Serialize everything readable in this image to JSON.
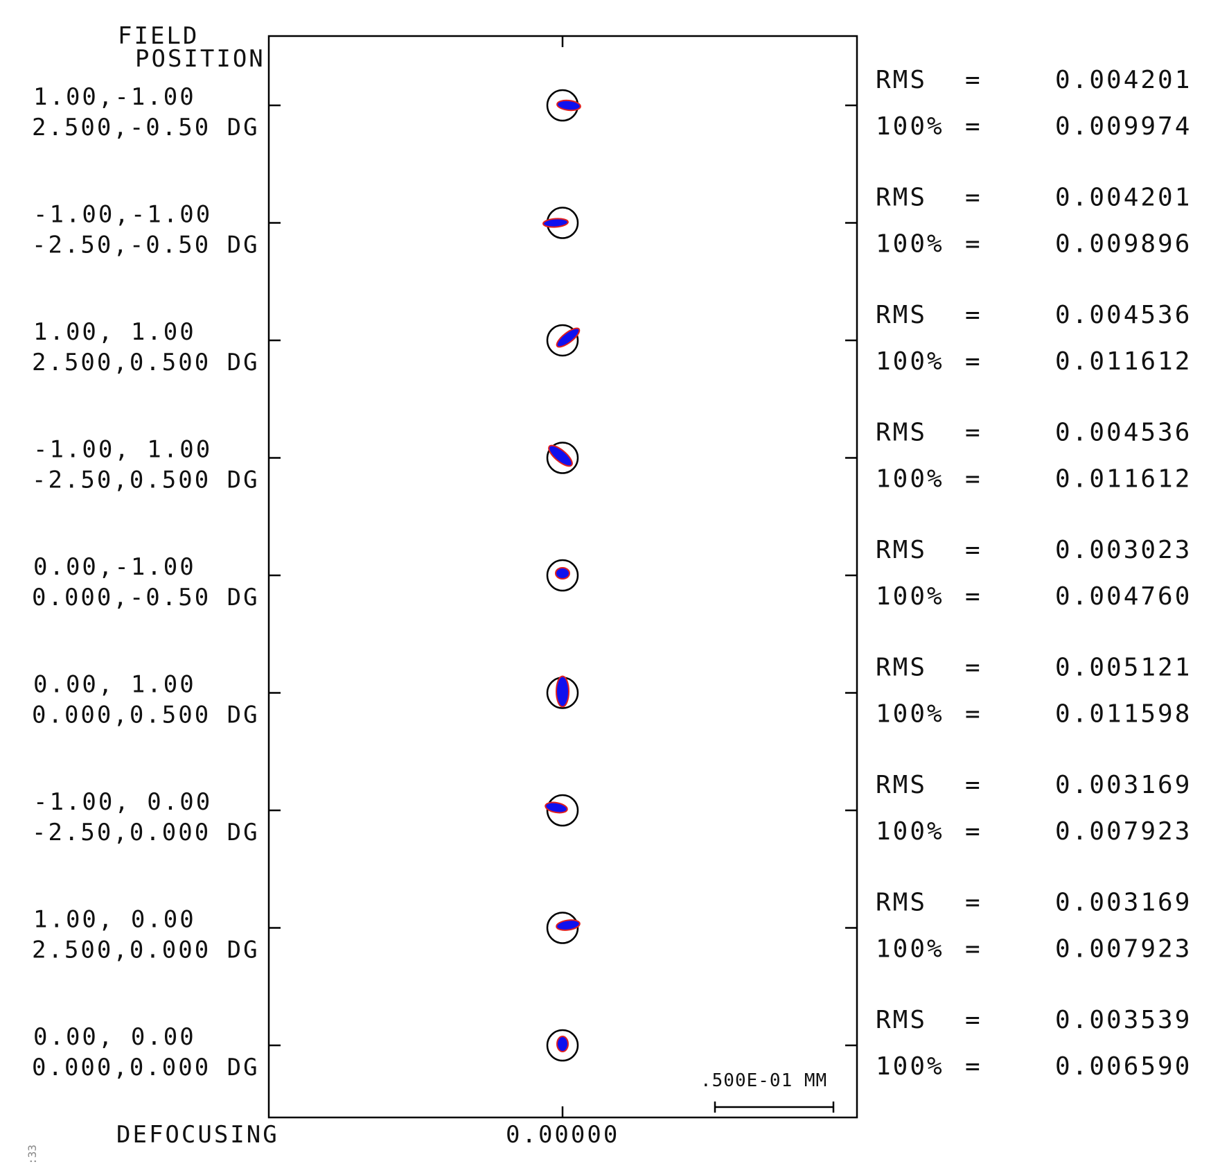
{
  "chart_data": {
    "type": "scatter",
    "kind": "spot diagram",
    "header": [
      "FIELD",
      "POSITION"
    ],
    "defocus_label": "DEFOCUSING",
    "defocus_value": "0.00000",
    "scale_bar_label": ".500E-01 MM",
    "scale_bar_mm": 0.05,
    "corner_text": ":33",
    "colors": {
      "spot_fill": "#1010ee",
      "spot_edge": "#e02020",
      "airy_circle": "#000000"
    },
    "fields": [
      {
        "rel": "1.00,-1.00",
        "deg": "2.500,-0.50 DG",
        "rms_label": "RMS",
        "rms": "0.004201",
        "geo_label": "100%",
        "geo": "0.009974"
      },
      {
        "rel": "-1.00,-1.00",
        "deg": "-2.50,-0.50 DG",
        "rms_label": "RMS",
        "rms": "0.004201",
        "geo_label": "100%",
        "geo": "0.009896"
      },
      {
        "rel": "1.00, 1.00",
        "deg": "2.500,0.500 DG",
        "rms_label": "RMS",
        "rms": "0.004536",
        "geo_label": "100%",
        "geo": "0.011612"
      },
      {
        "rel": "-1.00, 1.00",
        "deg": "-2.50,0.500 DG",
        "rms_label": "RMS",
        "rms": "0.004536",
        "geo_label": "100%",
        "geo": "0.011612"
      },
      {
        "rel": "0.00,-1.00",
        "deg": "0.000,-0.50 DG",
        "rms_label": "RMS",
        "rms": "0.003023",
        "geo_label": "100%",
        "geo": "0.004760"
      },
      {
        "rel": "0.00, 1.00",
        "deg": "0.000,0.500 DG",
        "rms_label": "RMS",
        "rms": "0.005121",
        "geo_label": "100%",
        "geo": "0.011598"
      },
      {
        "rel": "-1.00, 0.00",
        "deg": "-2.50,0.000 DG",
        "rms_label": "RMS",
        "rms": "0.003169",
        "geo_label": "100%",
        "geo": "0.007923"
      },
      {
        "rel": "1.00, 0.00",
        "deg": "2.500,0.000 DG",
        "rms_label": "RMS",
        "rms": "0.003169",
        "geo_label": "100%",
        "geo": "0.007923"
      },
      {
        "rel": "0.00, 0.00",
        "deg": "0.000,0.000 DG",
        "rms_label": "RMS",
        "rms": "0.003539",
        "geo_label": "100%",
        "geo": "0.006590"
      }
    ]
  }
}
